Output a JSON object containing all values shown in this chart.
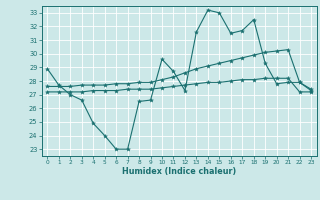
{
  "title": "",
  "xlabel": "Humidex (Indice chaleur)",
  "bg_color": "#cce8e8",
  "line_color": "#1a7070",
  "grid_color": "#aad4d4",
  "xlim": [
    -0.5,
    23.5
  ],
  "ylim": [
    22.5,
    33.5
  ],
  "yticks": [
    23,
    24,
    25,
    26,
    27,
    28,
    29,
    30,
    31,
    32,
    33
  ],
  "xticks": [
    0,
    1,
    2,
    3,
    4,
    5,
    6,
    7,
    8,
    9,
    10,
    11,
    12,
    13,
    14,
    15,
    16,
    17,
    18,
    19,
    20,
    21,
    22,
    23
  ],
  "line1_x": [
    0,
    1,
    2,
    3,
    4,
    5,
    6,
    7,
    8,
    9,
    10,
    11,
    12,
    13,
    14,
    15,
    16,
    17,
    18,
    19,
    20,
    21,
    22,
    23
  ],
  "line1_y": [
    28.9,
    27.7,
    27.0,
    26.6,
    24.9,
    24.0,
    23.0,
    23.0,
    26.5,
    26.6,
    29.6,
    28.7,
    27.3,
    31.6,
    33.2,
    33.0,
    31.5,
    31.7,
    32.5,
    29.3,
    27.8,
    27.9,
    27.9,
    27.3
  ],
  "line2_x": [
    0,
    1,
    2,
    3,
    4,
    5,
    6,
    7,
    8,
    9,
    10,
    11,
    12,
    13,
    14,
    15,
    16,
    17,
    18,
    19,
    20,
    21,
    22,
    23
  ],
  "line2_y": [
    27.2,
    27.2,
    27.2,
    27.2,
    27.3,
    27.3,
    27.3,
    27.4,
    27.4,
    27.4,
    27.5,
    27.6,
    27.7,
    27.8,
    27.9,
    27.9,
    28.0,
    28.1,
    28.1,
    28.2,
    28.2,
    28.2,
    27.2,
    27.2
  ],
  "line3_x": [
    0,
    1,
    2,
    3,
    4,
    5,
    6,
    7,
    8,
    9,
    10,
    11,
    12,
    13,
    14,
    15,
    16,
    17,
    18,
    19,
    20,
    21,
    22,
    23
  ],
  "line3_y": [
    27.6,
    27.6,
    27.6,
    27.7,
    27.7,
    27.7,
    27.8,
    27.8,
    27.9,
    27.9,
    28.1,
    28.3,
    28.6,
    28.9,
    29.1,
    29.3,
    29.5,
    29.7,
    29.9,
    30.1,
    30.2,
    30.3,
    27.9,
    27.4
  ]
}
